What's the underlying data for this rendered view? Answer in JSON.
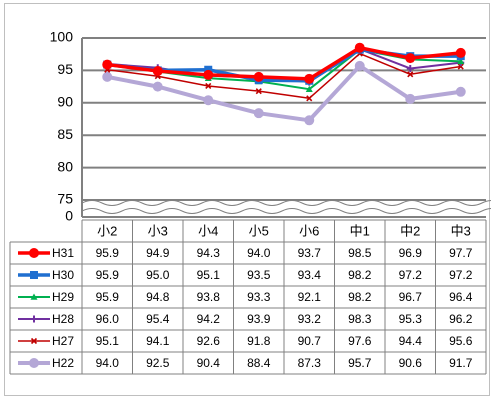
{
  "chart_data": {
    "type": "line",
    "categories": [
      "小2",
      "小3",
      "小4",
      "小5",
      "小6",
      "中1",
      "中2",
      "中3"
    ],
    "y_ticks": [
      "100",
      "95",
      "90",
      "85",
      "80",
      "75",
      "0"
    ],
    "ylim": [
      0,
      100
    ],
    "axis_break": "between 0 and 75",
    "grid": true,
    "legend_placement": "data-table-left",
    "series": [
      {
        "name": "H31",
        "color": "#ff0000",
        "marker": "circle",
        "values": [
          95.9,
          94.9,
          94.3,
          94.0,
          93.7,
          98.5,
          96.9,
          97.7
        ]
      },
      {
        "name": "H30",
        "color": "#1f6fd0",
        "marker": "square",
        "values": [
          95.9,
          95.0,
          95.1,
          93.5,
          93.4,
          98.2,
          97.2,
          97.2
        ]
      },
      {
        "name": "H29",
        "color": "#00b050",
        "marker": "triangle",
        "values": [
          95.9,
          94.8,
          93.8,
          93.3,
          92.1,
          98.2,
          96.7,
          96.4
        ]
      },
      {
        "name": "H28",
        "color": "#7030a0",
        "marker": "cross",
        "values": [
          96.0,
          95.4,
          94.2,
          93.9,
          93.2,
          98.3,
          95.3,
          96.2
        ]
      },
      {
        "name": "H27",
        "color": "#c00000",
        "marker": "star",
        "values": [
          95.1,
          94.1,
          92.6,
          91.8,
          90.7,
          97.6,
          94.4,
          95.6
        ]
      },
      {
        "name": "H22",
        "color": "#b4a7d6",
        "marker": "circle",
        "values": [
          94.0,
          92.5,
          90.4,
          88.4,
          87.3,
          95.7,
          90.6,
          91.7
        ]
      }
    ]
  }
}
